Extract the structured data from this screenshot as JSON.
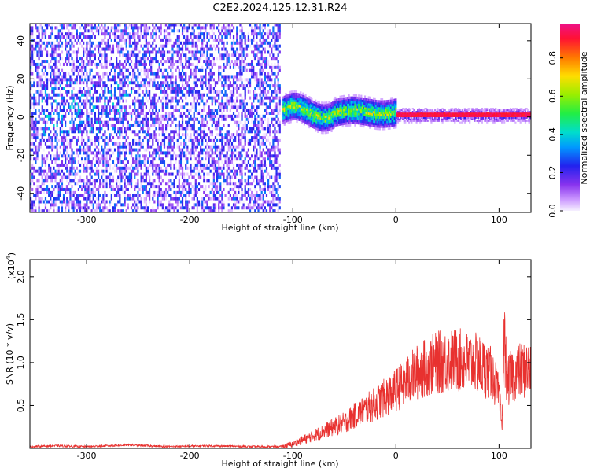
{
  "title": "C2E2.2024.125.12.31.R24",
  "chart_data": [
    {
      "type": "heatmap",
      "xlabel": "Height of straight line (km)",
      "ylabel": "Frequency (Hz)",
      "xlim": [
        -355,
        131
      ],
      "ylim": [
        -50,
        49
      ],
      "xticks": [
        "-300",
        "-200",
        "-100",
        "0",
        "100"
      ],
      "xtick_values": [
        -300,
        -200,
        -100,
        0,
        100
      ],
      "yticks": [
        "40",
        "20",
        "0",
        "-20",
        "-40"
      ],
      "ytick_values": [
        40,
        20,
        0,
        -20,
        -40
      ],
      "colorbar": {
        "label": "Normalized spectral amplitude",
        "ticks": [
          "0.0",
          "0.2",
          "0.4",
          "0.6",
          "0.8"
        ],
        "tick_values": [
          0.0,
          0.2,
          0.4,
          0.6,
          0.8
        ],
        "range": [
          0,
          0.98
        ],
        "colormap": "purple-blue-cyan-green-yellow-orange-red-magenta"
      },
      "regions": [
        {
          "x_range": [
            -355,
            -112
          ],
          "freq_range": [
            -50,
            49
          ],
          "amplitude": "0.0-0.3 (noise)"
        },
        {
          "x_range": [
            -110,
            0
          ],
          "freq_center": 2,
          "freq_halfwidth": 5,
          "amplitude": "0.2-0.8"
        },
        {
          "x_range": [
            0,
            131
          ],
          "freq_center": 0.5,
          "freq_halfwidth": 1.2,
          "amplitude": "0.9-1.0"
        }
      ]
    },
    {
      "type": "line",
      "xlabel": "Height of straight line (km)",
      "ylabel": "SNR (10 * v/v)",
      "scale_label": "(x10",
      "scale_exp": "4",
      "xlim": [
        -355,
        131
      ],
      "ylim": [
        0,
        2.2
      ],
      "xticks": [
        "-300",
        "-200",
        "-100",
        "0",
        "100"
      ],
      "xtick_values": [
        -300,
        -200,
        -100,
        0,
        100
      ],
      "yticks": [
        "2.0",
        "1.5",
        "1.0",
        "0.5"
      ],
      "ytick_values": [
        2.0,
        1.5,
        1.0,
        0.5
      ],
      "grid": false,
      "series": [
        {
          "color": "#e8312f",
          "x": [
            -355,
            -330,
            -300,
            -260,
            -220,
            -180,
            -140,
            -110,
            -100,
            -90,
            -80,
            -70,
            -60,
            -50,
            -40,
            -30,
            -20,
            -10,
            0,
            10,
            20,
            30,
            40,
            50,
            60,
            70,
            80,
            90,
            95,
            100,
            103,
            105,
            108,
            112,
            120,
            131
          ],
          "y": [
            0.02,
            0.03,
            0.02,
            0.04,
            0.02,
            0.03,
            0.02,
            0.02,
            0.05,
            0.1,
            0.15,
            0.2,
            0.25,
            0.3,
            0.38,
            0.45,
            0.52,
            0.6,
            0.68,
            0.78,
            0.88,
            0.95,
            1.0,
            1.02,
            1.03,
            1.0,
            0.98,
            0.9,
            0.82,
            0.6,
            0.25,
            1.3,
            0.75,
            0.85,
            0.9,
            0.92
          ]
        }
      ]
    }
  ]
}
